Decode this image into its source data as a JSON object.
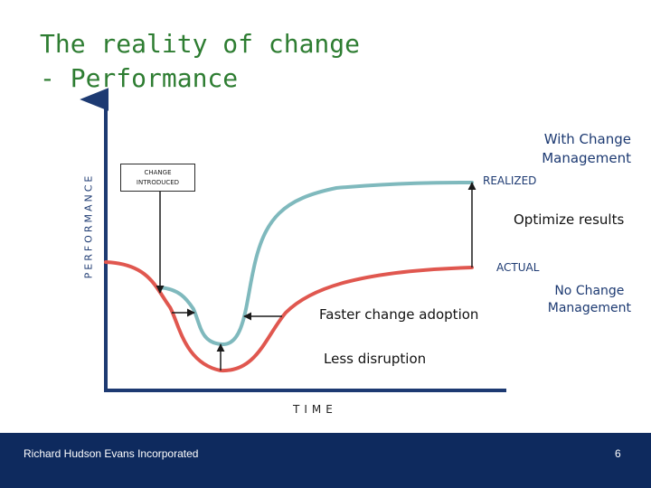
{
  "title": {
    "line1": "The reality of change",
    "line2": "- Performance"
  },
  "axes": {
    "y_label": "PERFORMANCE",
    "x_label": "TIME"
  },
  "labels": {
    "change_introduced_line1": "CHANGE",
    "change_introduced_line2": "INTRODUCED",
    "with_change_management_line1": "With Change",
    "with_change_management_line2": "Management",
    "realized": "REALIZED",
    "optimize_results": "Optimize results",
    "actual": "ACTUAL",
    "no_change_management_line1": "No Change",
    "no_change_management_line2": "Management",
    "faster_change_adoption": "Faster change adoption",
    "less_disruption": "Less disruption"
  },
  "colors": {
    "title": "#2e7d32",
    "axis": "#1d3a72",
    "with_cm_curve": "#7fb9bd",
    "no_cm_curve": "#e0574f",
    "footer_bg": "#0e2a5e"
  },
  "footer": {
    "company": "Richard Hudson  Evans Incorporated",
    "page_number": "6"
  }
}
